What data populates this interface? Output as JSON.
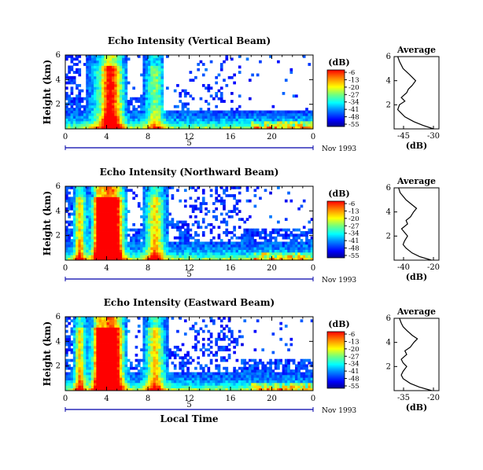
{
  "chart_data": [
    {
      "type": "heatmap",
      "title": "Echo Intensity (Vertical Beam)",
      "ylabel": "Height (km)",
      "xlabel": "",
      "xlim": [
        0,
        24
      ],
      "ylim": [
        0,
        6
      ],
      "xticks": [
        "0",
        "4",
        "8",
        "12",
        "16",
        "20",
        "0"
      ],
      "yticks": [
        "6",
        "4",
        "2"
      ],
      "date_label": "5",
      "month_label": "Nov 1993",
      "colorbar": {
        "unit": "(dB)",
        "ticks": [
          "-6",
          "-13",
          "-20",
          "-27",
          "-34",
          "-41",
          "-48",
          "-55"
        ]
      },
      "average": {
        "title": "Average",
        "xlabel": "(dB)",
        "xticks": [
          "-45",
          "-30"
        ],
        "yticks": [
          "6",
          "4",
          "2"
        ],
        "height_km": [
          0.0,
          0.3,
          0.6,
          1.0,
          1.3,
          1.6,
          2.0,
          2.3,
          2.6,
          3.0,
          3.3,
          3.6,
          4.0,
          4.3,
          4.6,
          5.0,
          5.3,
          5.6,
          6.0
        ],
        "db": [
          -28,
          -34,
          -39,
          -44,
          -46,
          -48,
          -47,
          -44,
          -46,
          -43,
          -42,
          -40,
          -38,
          -40,
          -42,
          -45,
          -46,
          -47,
          -48
        ]
      }
    },
    {
      "type": "heatmap",
      "title": "Echo Intensity (Northward Beam)",
      "ylabel": "Height (km)",
      "xlabel": "",
      "xlim": [
        0,
        24
      ],
      "ylim": [
        0,
        6
      ],
      "xticks": [
        "0",
        "4",
        "8",
        "12",
        "16",
        "20",
        "0"
      ],
      "yticks": [
        "6",
        "4",
        "2"
      ],
      "date_label": "5",
      "month_label": "Nov 1993",
      "colorbar": {
        "unit": "(dB)",
        "ticks": [
          "-6",
          "-13",
          "-20",
          "-27",
          "-34",
          "-41",
          "-48",
          "-55"
        ]
      },
      "average": {
        "title": "Average",
        "xlabel": "(dB)",
        "xticks": [
          "-40",
          "-20"
        ],
        "yticks": [
          "6",
          "4",
          "2"
        ],
        "height_km": [
          0.0,
          0.3,
          0.6,
          1.0,
          1.3,
          1.6,
          2.0,
          2.3,
          2.6,
          3.0,
          3.3,
          3.6,
          4.0,
          4.3,
          4.6,
          5.0,
          5.3,
          5.6,
          6.0
        ],
        "db": [
          -20,
          -28,
          -33,
          -37,
          -39,
          -38,
          -36,
          -38,
          -40,
          -36,
          -37,
          -34,
          -32,
          -30,
          -33,
          -37,
          -39,
          -41,
          -42
        ]
      }
    },
    {
      "type": "heatmap",
      "title": "Echo Intensity (Eastward Beam)",
      "ylabel": "Height (km)",
      "xlabel": "Local Time",
      "xlim": [
        0,
        24
      ],
      "ylim": [
        0,
        6
      ],
      "xticks": [
        "0",
        "4",
        "8",
        "12",
        "16",
        "20",
        "0"
      ],
      "yticks": [
        "6",
        "4",
        "2"
      ],
      "date_label": "5",
      "month_label": "Nov 1993",
      "colorbar": {
        "unit": "(dB)",
        "ticks": [
          "-6",
          "-13",
          "-20",
          "-27",
          "-34",
          "-41",
          "-48",
          "-55"
        ]
      },
      "average": {
        "title": "Average",
        "xlabel": "(dB)",
        "xticks": [
          "-35",
          "-20"
        ],
        "yticks": [
          "6",
          "4",
          "2"
        ],
        "height_km": [
          0.0,
          0.3,
          0.6,
          1.0,
          1.3,
          1.6,
          2.0,
          2.3,
          2.6,
          3.0,
          3.3,
          3.6,
          4.0,
          4.3,
          4.6,
          5.0,
          5.3,
          5.6,
          6.0
        ],
        "db": [
          -19,
          -26,
          -31,
          -35,
          -36,
          -35,
          -33,
          -35,
          -36,
          -33,
          -34,
          -31,
          -29,
          -27,
          -30,
          -33,
          -35,
          -36,
          -37
        ]
      }
    }
  ]
}
